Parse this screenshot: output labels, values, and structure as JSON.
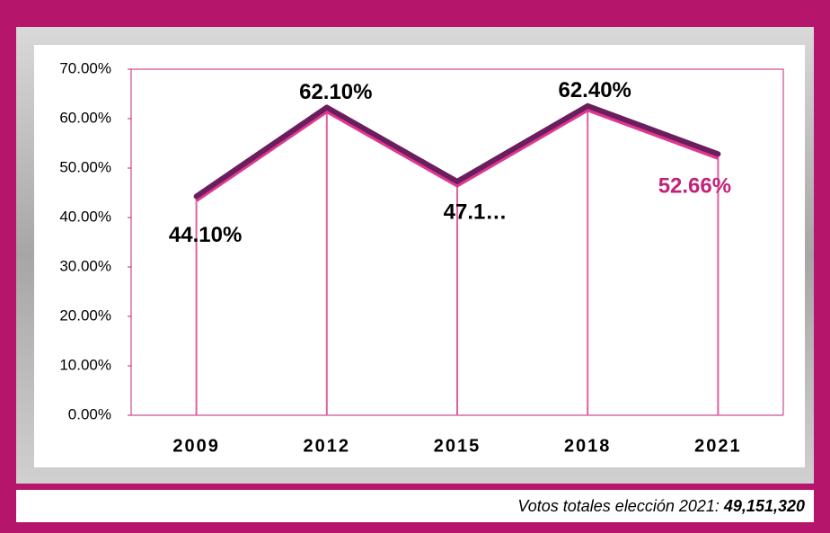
{
  "chart_data": {
    "type": "line",
    "categories": [
      "2009",
      "2012",
      "2015",
      "2018",
      "2021"
    ],
    "values": [
      44.1,
      62.1,
      47.1,
      62.4,
      52.66
    ],
    "value_labels": [
      "44.10%",
      "62.10%",
      "47.1…",
      "62.40%",
      "52.66%"
    ],
    "value_label_colors": [
      "#000000",
      "#000000",
      "#000000",
      "#000000",
      "#c2237a"
    ],
    "color": "#6b1e5e",
    "shadow_color": "#e0388f",
    "drop_line_color": "#e0609f",
    "ylim": [
      0,
      70
    ],
    "yticks": [
      {
        "value": 0,
        "label": "0.00%"
      },
      {
        "value": 10,
        "label": "10.00%"
      },
      {
        "value": 20,
        "label": "20.00%"
      },
      {
        "value": 30,
        "label": "30.00%"
      },
      {
        "value": 40,
        "label": "40.00%"
      },
      {
        "value": 50,
        "label": "50.00%"
      },
      {
        "value": 60,
        "label": "60.00%"
      },
      {
        "value": 70,
        "label": "70.00%"
      }
    ],
    "grid": false
  },
  "footer": {
    "text": "Votos totales elección 2021:",
    "total": "49,151,320"
  }
}
